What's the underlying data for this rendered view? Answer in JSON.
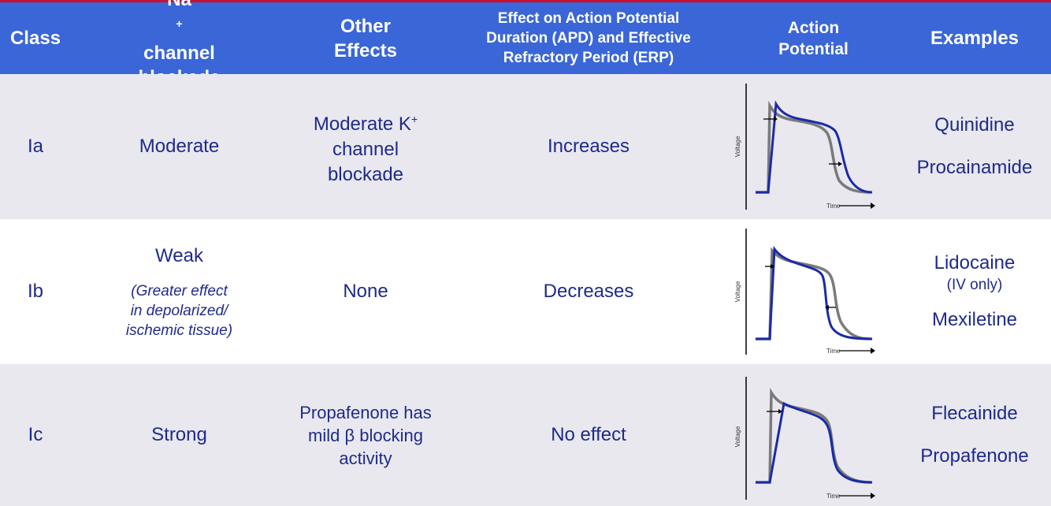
{
  "colors": {
    "header_bg": "#3a66d8",
    "header_text": "#ffffff",
    "body_text": "#1f2a8c",
    "row_shade": "#e8e8ee",
    "curve_blue": "#1a2ba8",
    "curve_gray": "#7a7a7a",
    "top_line": "#c8102e"
  },
  "header": {
    "class": "Class",
    "na_line1": "Na",
    "na_sup": "+",
    "na_line1_rest": " channel",
    "na_line2": "blockade",
    "other_line1": "Other",
    "other_line2": "Effects",
    "effect_line1": "Effect on Action Potential",
    "effect_line2": "Duration (APD) and Effective",
    "effect_line3": "Refractory Period (ERP)",
    "ap_line1": "Action",
    "ap_line2": "Potential",
    "examples": "Examples"
  },
  "graph_labels": {
    "voltage": "Voltage",
    "time": "Time"
  },
  "rows": [
    {
      "class": "Ia",
      "na_blockade": "Moderate",
      "other_line1": "Moderate K",
      "other_sup": "+",
      "other_line2": "channel",
      "other_line3": "blockade",
      "effect": "Increases",
      "example1": "Quinidine",
      "example2": "Procainamide"
    },
    {
      "class": "Ib",
      "na_blockade": "Weak",
      "na_note1": "(Greater effect",
      "na_note2": "in depolarized/",
      "na_note3": "ischemic tissue)",
      "other": "None",
      "effect": "Decreases",
      "example1": "Lidocaine",
      "example1_note": "(IV only)",
      "example2": "Mexiletine"
    },
    {
      "class": "Ic",
      "na_blockade": "Strong",
      "other_line1": "Propafenone has",
      "other_line2": "mild β blocking",
      "other_line3": "activity",
      "effect": "No effect",
      "example1": "Flecainide",
      "example2": "Propafenone"
    }
  ]
}
